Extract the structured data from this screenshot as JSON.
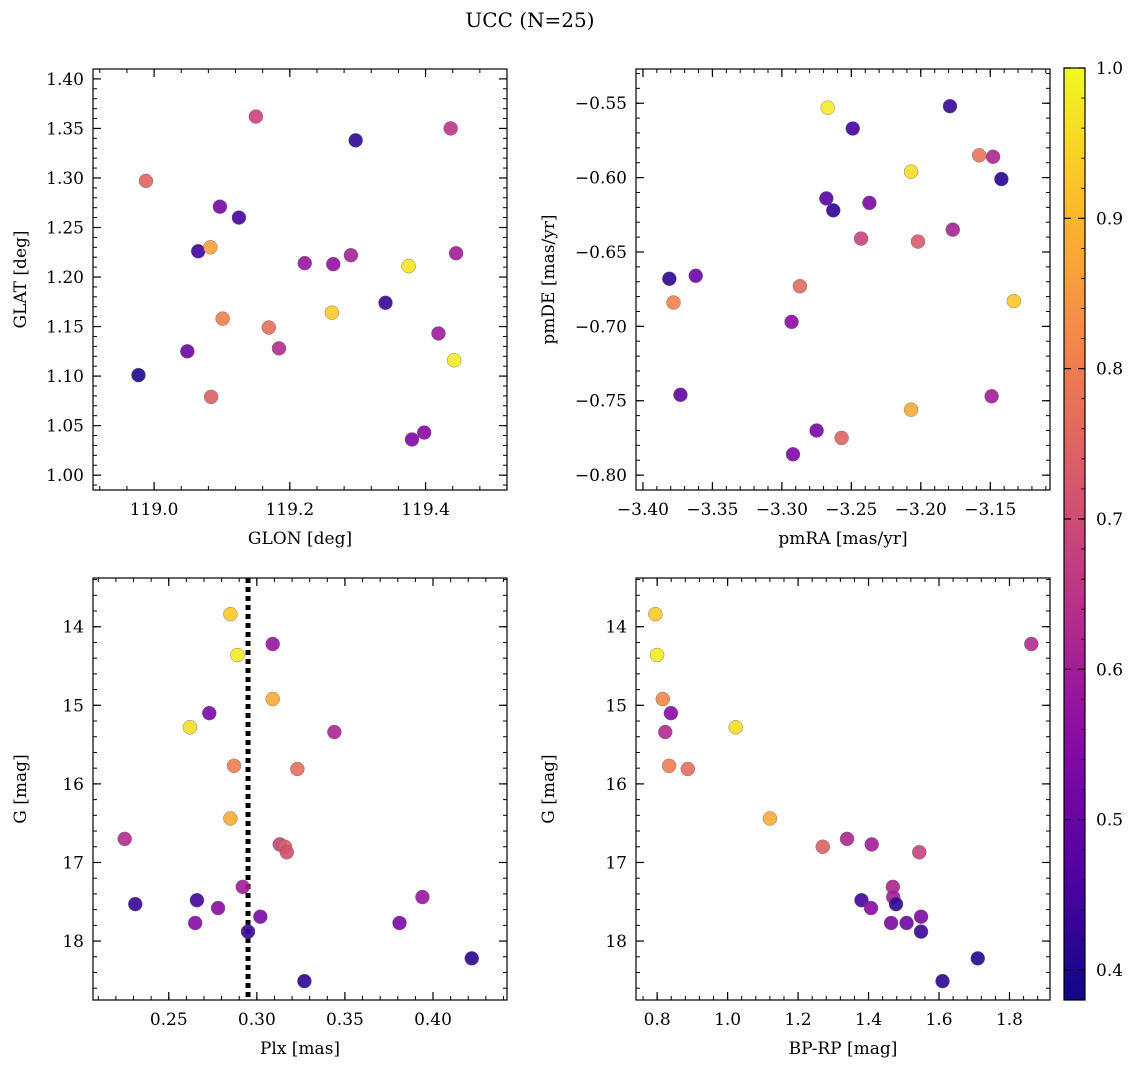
{
  "figure": {
    "title": "UCC (N=25)"
  },
  "colorbar": {
    "ticks": [
      0.4,
      0.5,
      0.6,
      0.7,
      0.8,
      0.9,
      1.0
    ],
    "tick_labels": [
      "0.4",
      "0.5",
      "0.6",
      "0.7",
      "0.8",
      "0.9",
      "1.0"
    ],
    "range": [
      0.38,
      1.0
    ],
    "colormap": "plasma"
  },
  "chart_data": [
    {
      "type": "scatter",
      "xlabel": "GLON [deg]",
      "ylabel": "GLAT [deg]",
      "xlim": [
        118.91,
        119.52
      ],
      "ylim": [
        0.985,
        1.41
      ],
      "xticks": [
        119.0,
        119.2,
        119.4
      ],
      "xtick_labels": [
        "119.0",
        "119.2",
        "119.4"
      ],
      "yticks": [
        1.0,
        1.05,
        1.1,
        1.15,
        1.2,
        1.25,
        1.3,
        1.35,
        1.4
      ],
      "ytick_labels": [
        "1.00",
        "1.05",
        "1.10",
        "1.15",
        "1.20",
        "1.25",
        "1.30",
        "1.35",
        "1.40"
      ],
      "points": [
        {
          "x": 119.15,
          "y": 1.362,
          "c": 0.68
        },
        {
          "x": 119.297,
          "y": 1.338,
          "c": 0.42
        },
        {
          "x": 119.437,
          "y": 1.35,
          "c": 0.65
        },
        {
          "x": 118.988,
          "y": 1.297,
          "c": 0.75
        },
        {
          "x": 119.097,
          "y": 1.271,
          "c": 0.52
        },
        {
          "x": 119.125,
          "y": 1.26,
          "c": 0.45
        },
        {
          "x": 119.065,
          "y": 1.226,
          "c": 0.44
        },
        {
          "x": 119.083,
          "y": 1.23,
          "c": 0.86
        },
        {
          "x": 119.222,
          "y": 1.214,
          "c": 0.58
        },
        {
          "x": 119.264,
          "y": 1.213,
          "c": 0.57
        },
        {
          "x": 119.29,
          "y": 1.222,
          "c": 0.61
        },
        {
          "x": 119.375,
          "y": 1.211,
          "c": 0.97
        },
        {
          "x": 119.445,
          "y": 1.224,
          "c": 0.6
        },
        {
          "x": 119.341,
          "y": 1.174,
          "c": 0.43
        },
        {
          "x": 119.262,
          "y": 1.164,
          "c": 0.93
        },
        {
          "x": 119.101,
          "y": 1.158,
          "c": 0.8
        },
        {
          "x": 119.169,
          "y": 1.149,
          "c": 0.77
        },
        {
          "x": 119.184,
          "y": 1.128,
          "c": 0.63
        },
        {
          "x": 119.419,
          "y": 1.143,
          "c": 0.59
        },
        {
          "x": 119.049,
          "y": 1.125,
          "c": 0.5
        },
        {
          "x": 119.442,
          "y": 1.116,
          "c": 0.98
        },
        {
          "x": 118.977,
          "y": 1.101,
          "c": 0.4
        },
        {
          "x": 119.084,
          "y": 1.079,
          "c": 0.74
        },
        {
          "x": 119.398,
          "y": 1.043,
          "c": 0.55
        },
        {
          "x": 119.38,
          "y": 1.036,
          "c": 0.54
        }
      ]
    },
    {
      "type": "scatter",
      "xlabel": "pmRA [mas/yr]",
      "ylabel": "pmDE [mas/yr]",
      "xlim": [
        -3.405,
        -3.107
      ],
      "ylim": [
        -0.81,
        -0.527
      ],
      "xticks": [
        -3.4,
        -3.35,
        -3.3,
        -3.25,
        -3.2,
        -3.15
      ],
      "xtick_labels": [
        "−3.40",
        "−3.35",
        "−3.30",
        "−3.25",
        "−3.20",
        "−3.15"
      ],
      "yticks": [
        -0.8,
        -0.75,
        -0.7,
        -0.65,
        -0.6,
        -0.55
      ],
      "ytick_labels": [
        "−0.80",
        "−0.75",
        "−0.70",
        "−0.65",
        "−0.60",
        "−0.55"
      ],
      "points": [
        {
          "x": -3.267,
          "y": -0.553,
          "c": 0.98
        },
        {
          "x": -3.179,
          "y": -0.552,
          "c": 0.43
        },
        {
          "x": -3.249,
          "y": -0.567,
          "c": 0.45
        },
        {
          "x": -3.158,
          "y": -0.585,
          "c": 0.78
        },
        {
          "x": -3.148,
          "y": -0.586,
          "c": 0.62
        },
        {
          "x": -3.207,
          "y": -0.596,
          "c": 0.96
        },
        {
          "x": -3.142,
          "y": -0.601,
          "c": 0.41
        },
        {
          "x": -3.268,
          "y": -0.614,
          "c": 0.47
        },
        {
          "x": -3.237,
          "y": -0.617,
          "c": 0.53
        },
        {
          "x": -3.263,
          "y": -0.622,
          "c": 0.42
        },
        {
          "x": -3.177,
          "y": -0.635,
          "c": 0.61
        },
        {
          "x": -3.243,
          "y": -0.641,
          "c": 0.68
        },
        {
          "x": -3.202,
          "y": -0.643,
          "c": 0.73
        },
        {
          "x": -3.381,
          "y": -0.668,
          "c": 0.42
        },
        {
          "x": -3.362,
          "y": -0.666,
          "c": 0.51
        },
        {
          "x": -3.287,
          "y": -0.673,
          "c": 0.76
        },
        {
          "x": -3.378,
          "y": -0.684,
          "c": 0.81
        },
        {
          "x": -3.133,
          "y": -0.683,
          "c": 0.93
        },
        {
          "x": -3.293,
          "y": -0.697,
          "c": 0.56
        },
        {
          "x": -3.373,
          "y": -0.746,
          "c": 0.49
        },
        {
          "x": -3.149,
          "y": -0.747,
          "c": 0.6
        },
        {
          "x": -3.207,
          "y": -0.756,
          "c": 0.88
        },
        {
          "x": -3.275,
          "y": -0.77,
          "c": 0.52
        },
        {
          "x": -3.257,
          "y": -0.775,
          "c": 0.75
        },
        {
          "x": -3.292,
          "y": -0.786,
          "c": 0.54
        }
      ]
    },
    {
      "type": "scatter",
      "xlabel": "Plx [mas]",
      "ylabel": "G [mag]",
      "xlim": [
        0.207,
        0.442
      ],
      "ylim": [
        18.75,
        13.38
      ],
      "y_inverted": true,
      "vline_x": 0.295,
      "xticks": [
        0.25,
        0.3,
        0.35,
        0.4
      ],
      "xtick_labels": [
        "0.25",
        "0.30",
        "0.35",
        "0.40"
      ],
      "yticks": [
        14,
        15,
        16,
        17,
        18
      ],
      "ytick_labels": [
        "14",
        "15",
        "16",
        "17",
        "18"
      ],
      "points": [
        {
          "x": 0.285,
          "y": 13.84,
          "c": 0.93
        },
        {
          "x": 0.289,
          "y": 14.36,
          "c": 0.98
        },
        {
          "x": 0.309,
          "y": 14.22,
          "c": 0.58
        },
        {
          "x": 0.309,
          "y": 14.92,
          "c": 0.88
        },
        {
          "x": 0.273,
          "y": 15.1,
          "c": 0.53
        },
        {
          "x": 0.262,
          "y": 15.28,
          "c": 0.96
        },
        {
          "x": 0.344,
          "y": 15.34,
          "c": 0.62
        },
        {
          "x": 0.287,
          "y": 15.77,
          "c": 0.8
        },
        {
          "x": 0.323,
          "y": 15.81,
          "c": 0.77
        },
        {
          "x": 0.285,
          "y": 16.44,
          "c": 0.88
        },
        {
          "x": 0.225,
          "y": 16.7,
          "c": 0.63
        },
        {
          "x": 0.313,
          "y": 16.77,
          "c": 0.68
        },
        {
          "x": 0.316,
          "y": 16.8,
          "c": 0.74
        },
        {
          "x": 0.317,
          "y": 16.87,
          "c": 0.71
        },
        {
          "x": 0.292,
          "y": 17.31,
          "c": 0.6
        },
        {
          "x": 0.394,
          "y": 17.44,
          "c": 0.58
        },
        {
          "x": 0.266,
          "y": 17.48,
          "c": 0.45
        },
        {
          "x": 0.231,
          "y": 17.53,
          "c": 0.43
        },
        {
          "x": 0.278,
          "y": 17.58,
          "c": 0.56
        },
        {
          "x": 0.302,
          "y": 17.69,
          "c": 0.53
        },
        {
          "x": 0.265,
          "y": 17.77,
          "c": 0.55
        },
        {
          "x": 0.381,
          "y": 17.77,
          "c": 0.53
        },
        {
          "x": 0.295,
          "y": 17.88,
          "c": 0.43
        },
        {
          "x": 0.422,
          "y": 18.22,
          "c": 0.41
        },
        {
          "x": 0.327,
          "y": 18.51,
          "c": 0.42
        }
      ]
    },
    {
      "type": "scatter",
      "xlabel": "BP-RP [mag]",
      "ylabel": "G [mag]",
      "xlim": [
        0.74,
        1.915
      ],
      "ylim": [
        18.75,
        13.38
      ],
      "y_inverted": true,
      "xticks": [
        0.8,
        1.0,
        1.2,
        1.4,
        1.6,
        1.8
      ],
      "xtick_labels": [
        "0.8",
        "1.0",
        "1.2",
        "1.4",
        "1.6",
        "1.8"
      ],
      "yticks": [
        14,
        15,
        16,
        17,
        18
      ],
      "ytick_labels": [
        "14",
        "15",
        "16",
        "17",
        "18"
      ],
      "points": [
        {
          "x": 0.795,
          "y": 13.84,
          "c": 0.93
        },
        {
          "x": 0.8,
          "y": 14.36,
          "c": 0.98
        },
        {
          "x": 1.862,
          "y": 14.22,
          "c": 0.63
        },
        {
          "x": 0.816,
          "y": 14.92,
          "c": 0.82
        },
        {
          "x": 0.839,
          "y": 15.1,
          "c": 0.55
        },
        {
          "x": 1.023,
          "y": 15.28,
          "c": 0.96
        },
        {
          "x": 0.823,
          "y": 15.34,
          "c": 0.63
        },
        {
          "x": 0.834,
          "y": 15.77,
          "c": 0.8
        },
        {
          "x": 0.887,
          "y": 15.81,
          "c": 0.77
        },
        {
          "x": 1.12,
          "y": 16.44,
          "c": 0.88
        },
        {
          "x": 1.339,
          "y": 16.7,
          "c": 0.62
        },
        {
          "x": 1.409,
          "y": 16.77,
          "c": 0.6
        },
        {
          "x": 1.27,
          "y": 16.8,
          "c": 0.74
        },
        {
          "x": 1.544,
          "y": 16.87,
          "c": 0.68
        },
        {
          "x": 1.469,
          "y": 17.31,
          "c": 0.62
        },
        {
          "x": 1.47,
          "y": 17.44,
          "c": 0.6
        },
        {
          "x": 1.38,
          "y": 17.48,
          "c": 0.45
        },
        {
          "x": 1.478,
          "y": 17.53,
          "c": 0.42
        },
        {
          "x": 1.407,
          "y": 17.58,
          "c": 0.55
        },
        {
          "x": 1.549,
          "y": 17.69,
          "c": 0.54
        },
        {
          "x": 1.464,
          "y": 17.77,
          "c": 0.53
        },
        {
          "x": 1.508,
          "y": 17.77,
          "c": 0.51
        },
        {
          "x": 1.549,
          "y": 17.88,
          "c": 0.43
        },
        {
          "x": 1.71,
          "y": 18.22,
          "c": 0.41
        },
        {
          "x": 1.61,
          "y": 18.51,
          "c": 0.42
        }
      ]
    }
  ]
}
